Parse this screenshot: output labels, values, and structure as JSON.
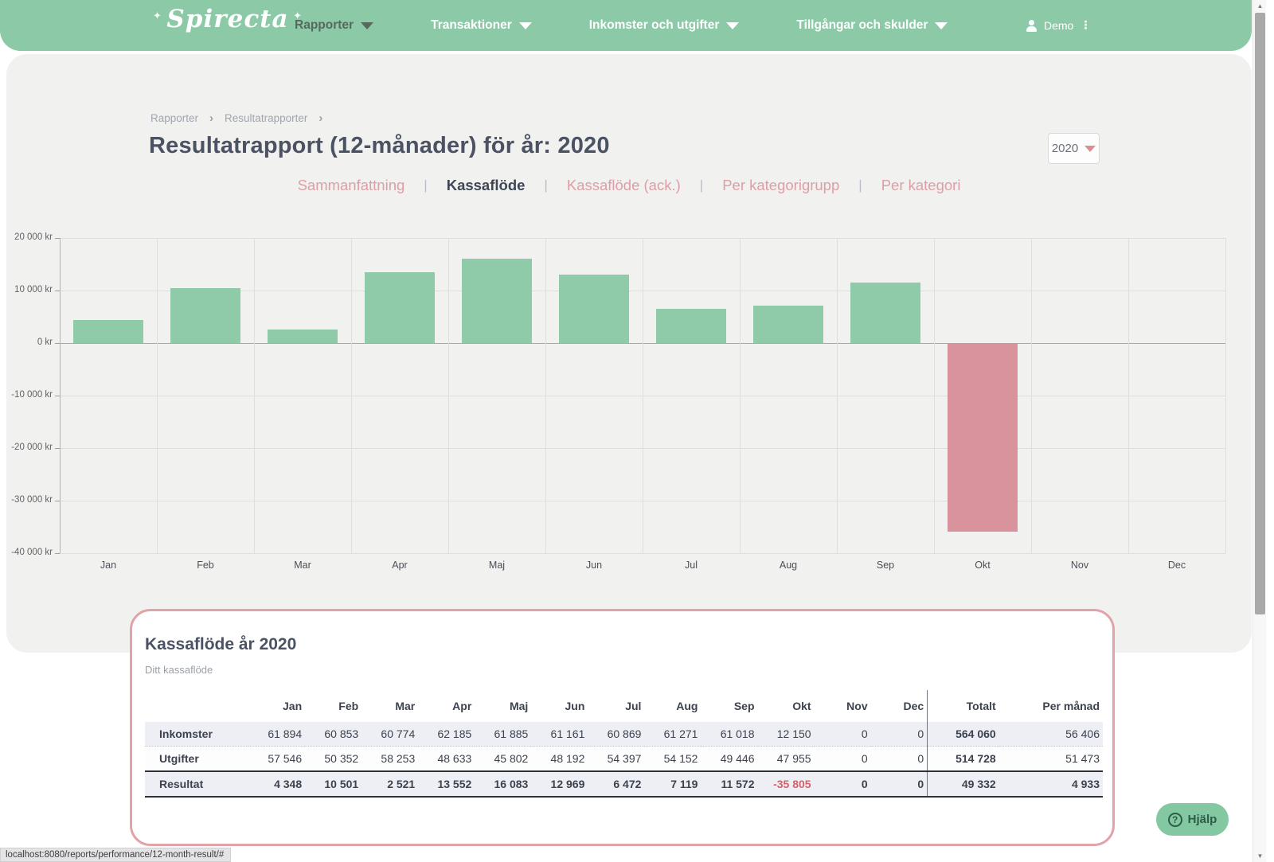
{
  "nav": {
    "logo": "Spirecta",
    "items": [
      {
        "label": "Rapporter",
        "active": true
      },
      {
        "label": "Transaktioner",
        "active": false
      },
      {
        "label": "Inkomster och utgifter",
        "active": false
      },
      {
        "label": "Tillgångar och skulder",
        "active": false
      }
    ],
    "user": "Demo"
  },
  "breadcrumb": [
    "Rapporter",
    "Resultatrapporter"
  ],
  "page": {
    "title": "Resultatrapport (12-månader) för år: 2020",
    "year_selected": "2020"
  },
  "tabs": [
    {
      "label": "Sammanfattning",
      "active": false
    },
    {
      "label": "Kassaflöde",
      "active": true
    },
    {
      "label": "Kassaflöde (ack.)",
      "active": false
    },
    {
      "label": "Per kategorigrupp",
      "active": false
    },
    {
      "label": "Per kategori",
      "active": false
    }
  ],
  "chart_data": {
    "type": "bar",
    "categories": [
      "Jan",
      "Feb",
      "Mar",
      "Apr",
      "Maj",
      "Jun",
      "Jul",
      "Aug",
      "Sep",
      "Okt",
      "Nov",
      "Dec"
    ],
    "values": [
      4348,
      10501,
      2521,
      13552,
      16083,
      12969,
      6472,
      7119,
      11572,
      -35805,
      0,
      0
    ],
    "title": "",
    "xlabel": "",
    "ylabel": "kr",
    "ylim": [
      -40000,
      20000
    ],
    "ytick_step": 10000,
    "ytick_labels": [
      "20 000 kr",
      "10 000 kr",
      "0 kr",
      "-10 000 kr",
      "-20 000 kr",
      "-30 000 kr",
      "-40 000 kr"
    ],
    "grid": true,
    "legend_position": "none",
    "positive_color": "#8fcba9",
    "negative_color": "#d8939c"
  },
  "card": {
    "title": "Kassaflöde år 2020",
    "subtitle": "Ditt kassaflöde",
    "table": {
      "month_headers": [
        "Jan",
        "Feb",
        "Mar",
        "Apr",
        "Maj",
        "Jun",
        "Jul",
        "Aug",
        "Sep",
        "Okt",
        "Nov",
        "Dec"
      ],
      "total_header": "Totalt",
      "per_month_header": "Per månad",
      "rows": [
        {
          "label": "Inkomster",
          "months": [
            "61 894",
            "60 853",
            "60 774",
            "62 185",
            "61 885",
            "61 161",
            "60 869",
            "61 271",
            "61 018",
            "12 150",
            "0",
            "0"
          ],
          "total": "564 060",
          "per_month": "56 406"
        },
        {
          "label": "Utgifter",
          "months": [
            "57 546",
            "50 352",
            "58 253",
            "48 633",
            "45 802",
            "48 192",
            "54 397",
            "54 152",
            "49 446",
            "47 955",
            "0",
            "0"
          ],
          "total": "514 728",
          "per_month": "51 473"
        },
        {
          "label": "Resultat",
          "months": [
            "4 348",
            "10 501",
            "2 521",
            "13 552",
            "16 083",
            "12 969",
            "6 472",
            "7 119",
            "11 572",
            "-35 805",
            "0",
            "0"
          ],
          "total": "49 332",
          "per_month": "4 933"
        }
      ]
    }
  },
  "help_button_label": "Hjälp",
  "status_bar_url": "localhost:8080/reports/performance/12-month-result/#",
  "colors": {
    "nav_green": "#8bc9a7",
    "panel_gray": "#f1f1ef",
    "bar_positive": "#8fcba9",
    "bar_negative": "#d8939c",
    "accent_pink": "#dd9ea6",
    "card_border_pink": "#e0a3a8",
    "negative_text": "#d85f68",
    "title_dark": "#4a5263"
  }
}
